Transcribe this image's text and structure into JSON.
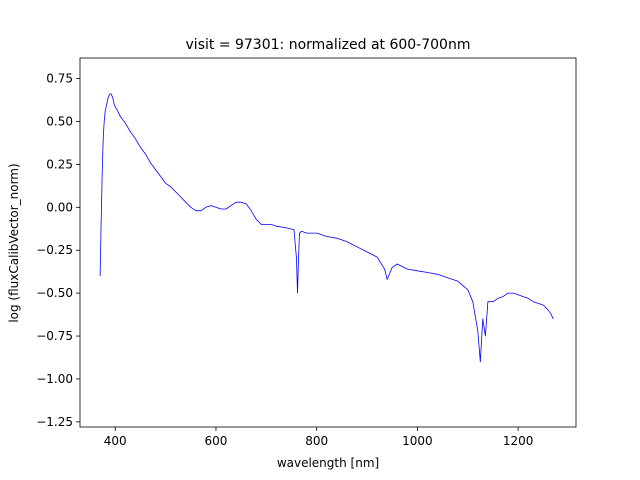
{
  "chart_data": {
    "type": "line",
    "title": "visit = 97301: normalized at 600-700nm",
    "xlabel": "wavelength [nm]",
    "ylabel": "log (fluxCalibVector_norm)",
    "xlim": [
      330,
      1315
    ],
    "ylim": [
      -1.28,
      0.87
    ],
    "xticks": [
      400,
      600,
      800,
      1000,
      1200
    ],
    "yticks": [
      -1.25,
      -1.0,
      -0.75,
      -0.5,
      -0.25,
      0.0,
      0.25,
      0.5,
      0.75
    ],
    "ytick_labels": [
      "−1.25",
      "−1.00",
      "−0.75",
      "−0.50",
      "−0.25",
      "0.00",
      "0.25",
      "0.50",
      "0.75"
    ],
    "grid": false,
    "series": [
      {
        "color": "#0000ff",
        "x": [
          370,
          372,
          374,
          376,
          378,
          380,
          383,
          386,
          389,
          392,
          395,
          398,
          401,
          405,
          410,
          415,
          420,
          430,
          440,
          450,
          460,
          470,
          480,
          490,
          500,
          510,
          520,
          530,
          540,
          550,
          560,
          570,
          580,
          590,
          600,
          610,
          620,
          630,
          640,
          650,
          660,
          670,
          680,
          690,
          700,
          710,
          720,
          740,
          755,
          760,
          762,
          764,
          766,
          770,
          780,
          800,
          820,
          840,
          860,
          880,
          900,
          920,
          935,
          940,
          950,
          960,
          980,
          1000,
          1020,
          1040,
          1060,
          1080,
          1100,
          1110,
          1120,
          1125,
          1130,
          1135,
          1140,
          1150,
          1160,
          1170,
          1180,
          1190,
          1200,
          1210,
          1220,
          1230,
          1240,
          1250,
          1260,
          1265,
          1270
        ],
        "y": [
          -0.4,
          -0.1,
          0.2,
          0.4,
          0.5,
          0.56,
          0.6,
          0.64,
          0.66,
          0.66,
          0.64,
          0.6,
          0.58,
          0.56,
          0.53,
          0.51,
          0.49,
          0.44,
          0.4,
          0.35,
          0.31,
          0.26,
          0.22,
          0.18,
          0.14,
          0.12,
          0.09,
          0.06,
          0.03,
          0.0,
          -0.02,
          -0.02,
          0.0,
          0.01,
          0.0,
          -0.01,
          -0.01,
          0.01,
          0.03,
          0.03,
          0.02,
          -0.02,
          -0.07,
          -0.1,
          -0.1,
          -0.1,
          -0.11,
          -0.12,
          -0.13,
          -0.3,
          -0.5,
          -0.3,
          -0.15,
          -0.14,
          -0.15,
          -0.15,
          -0.17,
          -0.18,
          -0.2,
          -0.23,
          -0.26,
          -0.29,
          -0.36,
          -0.42,
          -0.35,
          -0.33,
          -0.36,
          -0.37,
          -0.38,
          -0.39,
          -0.41,
          -0.43,
          -0.48,
          -0.55,
          -0.72,
          -0.9,
          -0.65,
          -0.75,
          -0.55,
          -0.55,
          -0.53,
          -0.52,
          -0.5,
          -0.5,
          -0.51,
          -0.52,
          -0.53,
          -0.55,
          -0.56,
          -0.57,
          -0.6,
          -0.62,
          -0.65
        ]
      }
    ]
  }
}
